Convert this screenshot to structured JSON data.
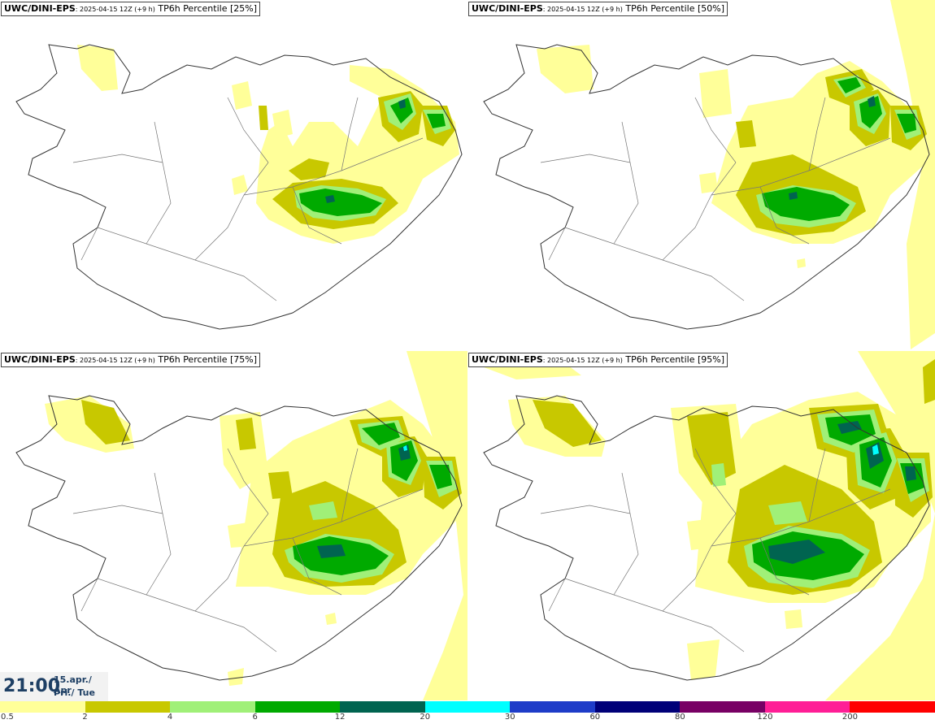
{
  "panels": [
    {
      "model": "UWC/DINI-EPS",
      "run": ": 2025-04-15 12Z (+9 h)",
      "product": " TP6h Percentile [25%]"
    },
    {
      "model": "UWC/DINI-EPS",
      "run": ": 2025-04-15 12Z (+9 h)",
      "product": " TP6h Percentile [50%]"
    },
    {
      "model": "UWC/DINI-EPS",
      "run": ": 2025-04-15 12Z (+9 h)",
      "product": " TP6h Percentile [75%]"
    },
    {
      "model": "UWC/DINI-EPS",
      "run": ": 2025-04-15 12Z (+9 h)",
      "product": " TP6h Percentile [95%]"
    }
  ],
  "valid_time": {
    "time": "21:00",
    "date_line1": "15.apr./ Apr",
    "date_line2": "Þri./ Tue"
  },
  "legend": {
    "colors": [
      "#ffff99",
      "#c8c800",
      "#a0f078",
      "#00aa00",
      "#006450",
      "#00ffff",
      "#1e3cc8",
      "#000078",
      "#780064",
      "#ff1e96",
      "#ff0000"
    ],
    "ticks": [
      "0.5",
      "2",
      "4",
      "6",
      "12",
      "20",
      "30",
      "60",
      "80",
      "120",
      "200"
    ]
  },
  "map_colors": {
    "level_0_5": "#ffff99",
    "level_2": "#c8c800",
    "level_4": "#a0f078",
    "level_6": "#00aa00",
    "level_12": "#006450",
    "level_20": "#00ffff",
    "coastline": "#333333",
    "roads": "#777777"
  }
}
